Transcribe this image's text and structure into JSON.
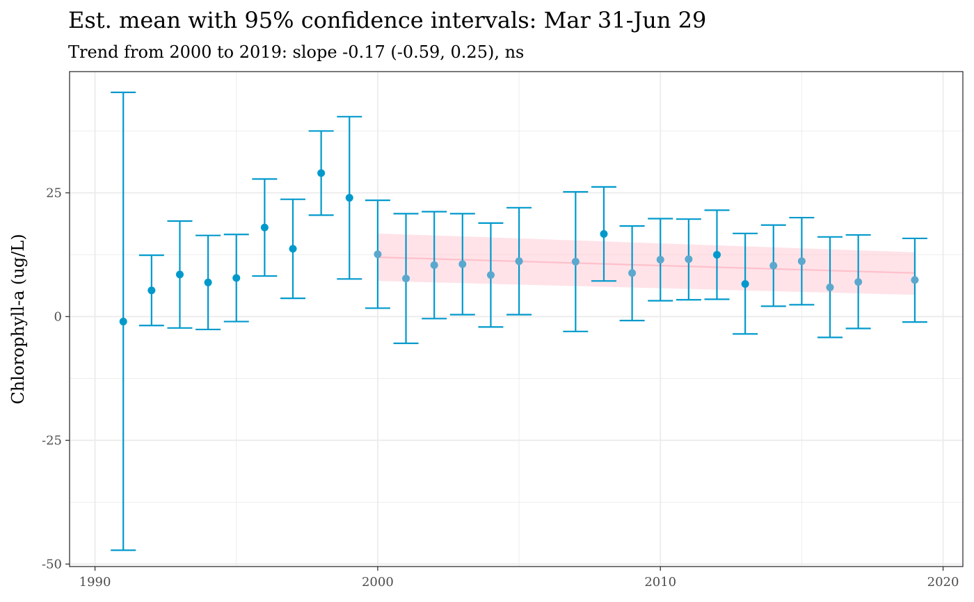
{
  "chart_data": {
    "type": "scatter",
    "title": "Est. mean with 95% confidence intervals: Mar 31-Jun 29",
    "subtitle": "Trend from 2000 to 2019: slope -0.17 (-0.59, 0.25), ns",
    "xlabel": "",
    "ylabel": "Chlorophyll-a (ug/L)",
    "xlim": [
      1989.1,
      2020.7
    ],
    "ylim": [
      -50.5,
      49.5
    ],
    "x_ticks": [
      1990,
      2000,
      2010,
      2020
    ],
    "x_tick_labels": [
      "1990",
      "2000",
      "2010",
      "2020"
    ],
    "y_ticks": [
      -50,
      -25,
      0,
      25
    ],
    "y_tick_labels": [
      "-50",
      "-25",
      "0",
      "25"
    ],
    "grid": true,
    "colors": {
      "primary": "#0099cc",
      "secondary": "#5ba8cf",
      "trend_line": "#ffc0cb",
      "trend_ribbon": "#ffc0cb",
      "grid": "#ebebeb",
      "panel_border": "#333333"
    },
    "series": [
      {
        "points": [
          {
            "x": 1991,
            "y": -1.0,
            "lower": -47.2,
            "upper": 45.3,
            "style": "primary"
          },
          {
            "x": 1992,
            "y": 5.3,
            "lower": -1.8,
            "upper": 12.4,
            "style": "primary"
          },
          {
            "x": 1993,
            "y": 8.5,
            "lower": -2.3,
            "upper": 19.3,
            "style": "primary"
          },
          {
            "x": 1994,
            "y": 6.9,
            "lower": -2.6,
            "upper": 16.4,
            "style": "primary"
          },
          {
            "x": 1995,
            "y": 7.8,
            "lower": -1.0,
            "upper": 16.6,
            "style": "primary"
          },
          {
            "x": 1996,
            "y": 18.0,
            "lower": 8.2,
            "upper": 27.8,
            "style": "primary"
          },
          {
            "x": 1997,
            "y": 13.7,
            "lower": 3.7,
            "upper": 23.7,
            "style": "primary"
          },
          {
            "x": 1998,
            "y": 29.0,
            "lower": 20.5,
            "upper": 37.5,
            "style": "primary"
          },
          {
            "x": 1999,
            "y": 24.0,
            "lower": 7.6,
            "upper": 40.4,
            "style": "primary"
          },
          {
            "x": 2000,
            "y": 12.6,
            "lower": 1.7,
            "upper": 23.5,
            "style": "secondary"
          },
          {
            "x": 2001,
            "y": 7.7,
            "lower": -5.4,
            "upper": 20.8,
            "style": "secondary"
          },
          {
            "x": 2002,
            "y": 10.4,
            "lower": -0.4,
            "upper": 21.2,
            "style": "secondary"
          },
          {
            "x": 2003,
            "y": 10.6,
            "lower": 0.4,
            "upper": 20.8,
            "style": "secondary"
          },
          {
            "x": 2004,
            "y": 8.4,
            "lower": -2.1,
            "upper": 18.9,
            "style": "secondary"
          },
          {
            "x": 2005,
            "y": 11.2,
            "lower": 0.4,
            "upper": 22.0,
            "style": "secondary"
          },
          {
            "x": 2007,
            "y": 11.1,
            "lower": -3.0,
            "upper": 25.2,
            "style": "secondary"
          },
          {
            "x": 2008,
            "y": 16.7,
            "lower": 7.2,
            "upper": 26.2,
            "style": "primary"
          },
          {
            "x": 2009,
            "y": 8.8,
            "lower": -0.8,
            "upper": 18.3,
            "style": "secondary"
          },
          {
            "x": 2010,
            "y": 11.5,
            "lower": 3.2,
            "upper": 19.8,
            "style": "secondary"
          },
          {
            "x": 2011,
            "y": 11.6,
            "lower": 3.4,
            "upper": 19.7,
            "style": "secondary"
          },
          {
            "x": 2012,
            "y": 12.5,
            "lower": 3.5,
            "upper": 21.5,
            "style": "primary"
          },
          {
            "x": 2013,
            "y": 6.6,
            "lower": -3.5,
            "upper": 16.8,
            "style": "primary"
          },
          {
            "x": 2014,
            "y": 10.3,
            "lower": 2.1,
            "upper": 18.5,
            "style": "secondary"
          },
          {
            "x": 2015,
            "y": 11.2,
            "lower": 2.4,
            "upper": 20.0,
            "style": "secondary"
          },
          {
            "x": 2016,
            "y": 5.9,
            "lower": -4.2,
            "upper": 16.1,
            "style": "secondary"
          },
          {
            "x": 2017,
            "y": 7.0,
            "lower": -2.4,
            "upper": 16.5,
            "style": "secondary"
          },
          {
            "x": 2019,
            "y": 7.4,
            "lower": -1.1,
            "upper": 15.8,
            "style": "secondary"
          }
        ]
      }
    ],
    "trend": {
      "x": [
        2000,
        2019
      ],
      "y": [
        12.0,
        8.8
      ],
      "ribbon_lower": [
        7.2,
        4.4
      ],
      "ribbon_upper": [
        16.8,
        13.0
      ]
    }
  }
}
